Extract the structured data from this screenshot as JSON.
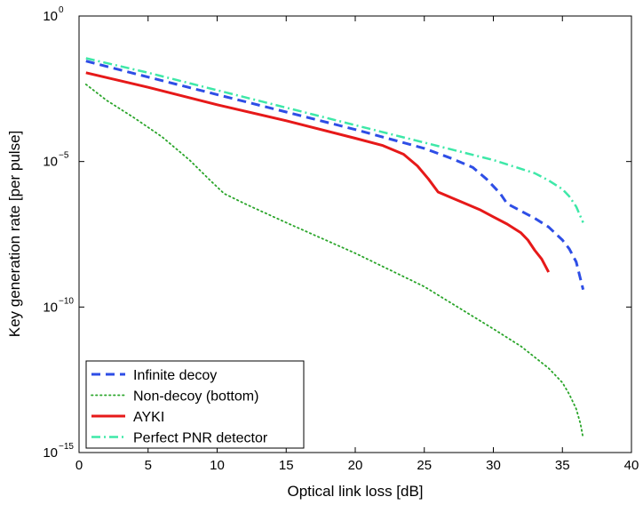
{
  "chart_data": {
    "type": "line",
    "title": "",
    "xlabel": "Optical link loss [dB]",
    "ylabel": "Key generation rate [per pulse]",
    "xlim": [
      0,
      40
    ],
    "ylim_log10": [
      -15,
      0
    ],
    "yscale": "log",
    "grid": false,
    "legend_position": "bottom-left",
    "x_ticks": [
      "0",
      "5",
      "10",
      "15",
      "20",
      "25",
      "30",
      "35",
      "40"
    ],
    "y_ticks": [
      {
        "base": "10",
        "exp": "0",
        "value_log10": 0
      },
      {
        "base": "10",
        "exp": "−5",
        "value_log10": -5
      },
      {
        "base": "10",
        "exp": "−10",
        "value_log10": -10
      },
      {
        "base": "10",
        "exp": "−15",
        "value_log10": -15
      }
    ],
    "series": [
      {
        "name": "Infinite decoy",
        "color": "#2e4ee6",
        "style": "dashed",
        "x": [
          0.5,
          5,
          10,
          15,
          20,
          25,
          27,
          28.5,
          29.5,
          30.5,
          31,
          32,
          33,
          34,
          35,
          35.5,
          36,
          36.5
        ],
        "log10_y": [
          -1.55,
          -2.1,
          -2.7,
          -3.3,
          -3.9,
          -4.55,
          -4.9,
          -5.2,
          -5.6,
          -6.1,
          -6.45,
          -6.7,
          -6.95,
          -7.25,
          -7.7,
          -8.0,
          -8.45,
          -9.4
        ]
      },
      {
        "name": "Non-decoy (bottom)",
        "color": "#2aa52a",
        "style": "dotted",
        "x": [
          0.5,
          2,
          4,
          6,
          8,
          9.5,
          10.5,
          12,
          15,
          20,
          25,
          30,
          32,
          34,
          35,
          35.5,
          36,
          36.3,
          36.5
        ],
        "log10_y": [
          -2.35,
          -2.9,
          -3.5,
          -4.15,
          -4.95,
          -5.65,
          -6.1,
          -6.45,
          -7.1,
          -8.15,
          -9.3,
          -10.75,
          -11.35,
          -12.1,
          -12.6,
          -13.0,
          -13.5,
          -14.0,
          -14.5
        ]
      },
      {
        "name": "AYKI",
        "color": "#e61919",
        "style": "solid",
        "x": [
          0.5,
          5,
          10,
          15,
          20,
          22,
          23.5,
          24.5,
          25.3,
          26,
          27,
          28,
          29,
          30,
          31,
          32,
          32.5,
          33,
          33.5,
          34
        ],
        "log10_y": [
          -1.95,
          -2.45,
          -3.05,
          -3.6,
          -4.2,
          -4.45,
          -4.75,
          -5.15,
          -5.6,
          -6.05,
          -6.25,
          -6.45,
          -6.65,
          -6.9,
          -7.15,
          -7.45,
          -7.7,
          -8.05,
          -8.35,
          -8.8
        ]
      },
      {
        "name": "Perfect PNR detector",
        "color": "#3ee8a8",
        "style": "dashdot",
        "x": [
          0.5,
          5,
          10,
          15,
          20,
          25,
          30,
          33,
          34,
          35,
          35.5,
          36,
          36.5
        ],
        "log10_y": [
          -1.45,
          -1.95,
          -2.55,
          -3.15,
          -3.75,
          -4.35,
          -4.95,
          -5.4,
          -5.65,
          -5.95,
          -6.2,
          -6.55,
          -7.1
        ]
      }
    ]
  }
}
